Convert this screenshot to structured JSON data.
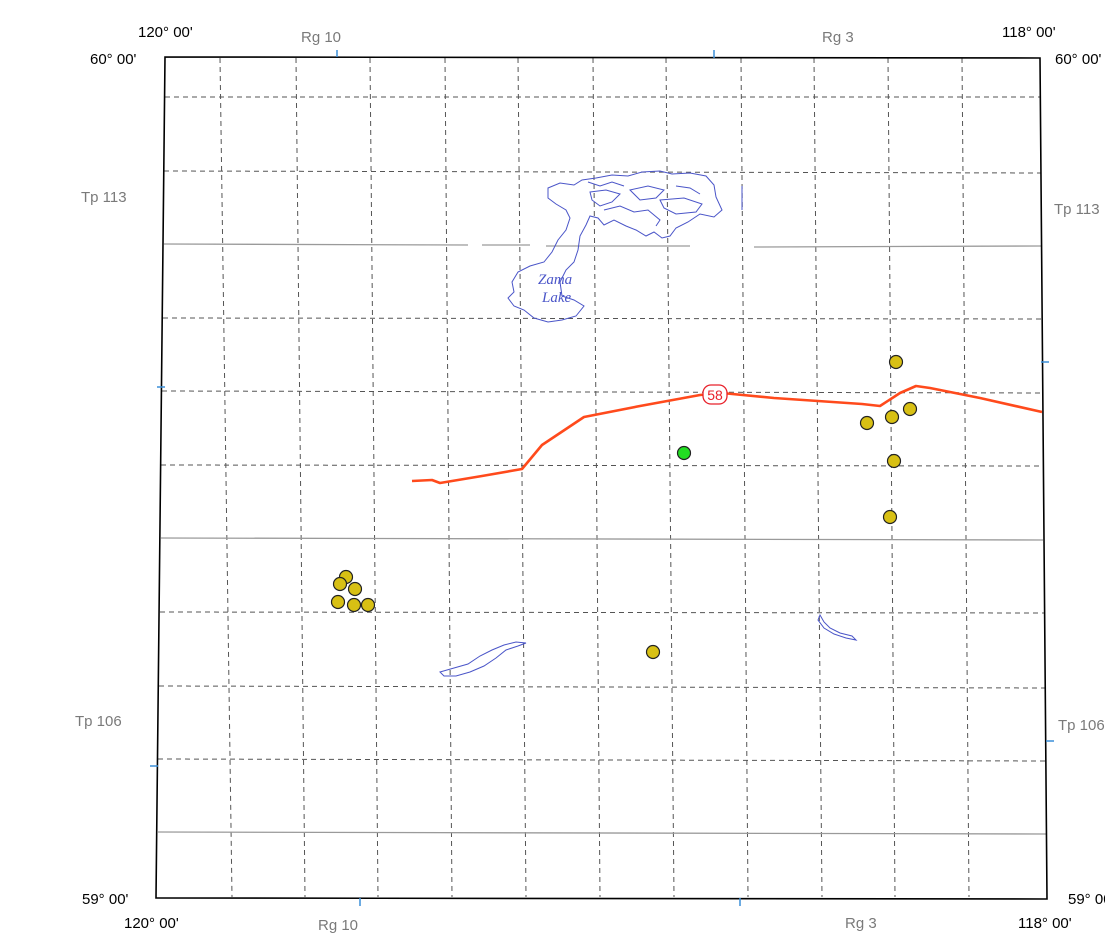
{
  "map": {
    "corners": {
      "top_left_lon": "120° 00'",
      "top_right_lon": "118° 00'",
      "top_left_lat": "60° 00'",
      "top_right_lat": "60° 00'",
      "bottom_left_lat": "59° 00'",
      "bottom_right_lat": "59° 00'",
      "bottom_left_lon": "120° 00'",
      "bottom_right_lon": "118° 00'"
    },
    "range_labels": {
      "top_rg10": "Rg 10",
      "top_rg3": "Rg 3",
      "bottom_rg10": "Rg 10",
      "bottom_rg3": "Rg 3"
    },
    "township_labels": {
      "left_tp113": "Tp 113",
      "right_tp113": "Tp 113",
      "left_tp106": "Tp 106",
      "right_tp106": "Tp 106"
    },
    "lake_name_line1": "Zama",
    "lake_name_line2": "Lake",
    "highway_number": "58",
    "colors": {
      "frame": "#000000",
      "grid": "#555555",
      "township_line": "#9a9a9a",
      "tick": "#3a8fd8",
      "water": "#4a55c8",
      "highway": "#ff4a1c",
      "highway_label": "#e8202a",
      "site_yellow": "#d8c014",
      "site_green": "#22dd22"
    },
    "sites": [
      {
        "type": "yellow",
        "count": 6,
        "area": "west cluster"
      },
      {
        "type": "yellow",
        "count": 6,
        "area": "east cluster"
      },
      {
        "type": "yellow",
        "count": 1,
        "area": "south-central"
      },
      {
        "type": "green",
        "count": 1,
        "area": "central"
      }
    ]
  }
}
